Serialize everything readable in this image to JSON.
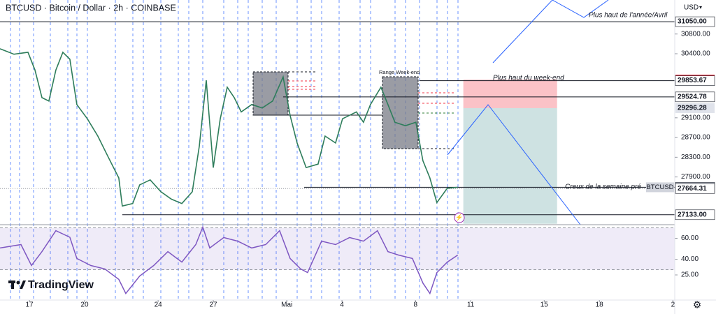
{
  "chart_data": {
    "type": "line",
    "title": "BTCUSD · Bitcoin / Dollar · 2h · COINBASE",
    "currency": "USD",
    "xlim": [
      15.4,
      52.1
    ],
    "xticks": [
      17,
      20,
      24,
      27,
      {
        "value": 31,
        "label": "Mai"
      },
      {
        "value": 34,
        "label": "4"
      },
      {
        "value": 38,
        "label": "8"
      },
      {
        "value": 41,
        "label": "11"
      },
      {
        "value": 45,
        "label": "15"
      },
      {
        "value": 48,
        "label": "18"
      },
      {
        "value": 52,
        "label": "2"
      }
    ],
    "ylim": [
      26960,
      31490
    ],
    "yticks": [
      {
        "value": 30800,
        "label": "30800.00"
      },
      {
        "value": 30400,
        "label": "30400.00"
      },
      {
        "value": 29100,
        "label": "29100.00"
      },
      {
        "value": 28700,
        "label": "28700.00"
      },
      {
        "value": 28300,
        "label": "28300.00"
      },
      {
        "value": 27900,
        "label": "27900.00"
      }
    ],
    "series": [
      {
        "name": "BTCUSD",
        "color": "#2e7d5b",
        "x": [
          15.4,
          16.16,
          16.92,
          17.3,
          17.68,
          18.06,
          18.44,
          18.82,
          19.2,
          19.58,
          20.15,
          20.72,
          21.29,
          21.86,
          22.05,
          22.62,
          23.0,
          23.57,
          24.15,
          24.72,
          25.29,
          25.86,
          26.24,
          26.62,
          27.0,
          27.38,
          27.76,
          28.14,
          28.52,
          29.09,
          29.66,
          30.23,
          30.8,
          31.18,
          31.56,
          32.05,
          32.7,
          33.08,
          33.65,
          34.03,
          34.79,
          35.17,
          35.55,
          36.12,
          36.5,
          36.88,
          37.45,
          38.02,
          38.4,
          38.78,
          39.16,
          39.73,
          40.3
        ],
        "values": [
          30500,
          30390,
          30430,
          30070,
          29510,
          29440,
          30070,
          30430,
          30290,
          29370,
          29080,
          28730,
          28300,
          27880,
          27310,
          27360,
          27740,
          27840,
          27600,
          27450,
          27360,
          27600,
          28520,
          29860,
          28090,
          29080,
          29720,
          29510,
          29220,
          29370,
          29300,
          29440,
          29930,
          29150,
          28590,
          28090,
          28160,
          28730,
          28590,
          29080,
          29220,
          29010,
          29370,
          29720,
          29370,
          29010,
          28940,
          29010,
          28230,
          27880,
          27380,
          27670,
          27690
        ]
      }
    ],
    "rsi": {
      "color": "#7e57c2",
      "ylim": [
        1,
        73
      ],
      "band": [
        30,
        70
      ],
      "yticks": [
        {
          "value": 60,
          "label": "60.00"
        },
        {
          "value": 40,
          "label": "40.00"
        },
        {
          "value": 25,
          "label": "25.00"
        }
      ],
      "x": [
        15.4,
        16.54,
        17.11,
        17.68,
        18.44,
        19.2,
        19.58,
        20.34,
        21.1,
        21.86,
        22.24,
        23.0,
        23.76,
        24.53,
        25.29,
        26.05,
        26.43,
        26.81,
        27.57,
        28.33,
        29.09,
        29.85,
        30.61,
        31.18,
        31.75,
        32.13,
        32.89,
        33.65,
        34.41,
        35.17,
        35.93,
        36.5,
        37.07,
        37.83,
        38.4,
        38.78,
        39.16,
        39.73,
        40.3
      ],
      "values": [
        50.7,
        54,
        34,
        47.3,
        67.3,
        61,
        40.7,
        34,
        30.7,
        20.7,
        7.3,
        24,
        34,
        47.3,
        37.3,
        54,
        70.7,
        50.7,
        60.7,
        57.3,
        50.7,
        54,
        67.3,
        40.7,
        30.7,
        27.3,
        57.3,
        54,
        60.7,
        57.3,
        67.3,
        47.3,
        44,
        40.7,
        17.3,
        7.3,
        27.3,
        37.3,
        44
      ]
    },
    "price_levels": [
      {
        "value": 31050,
        "label": "31050.00",
        "from": 15.4,
        "color": "#131722",
        "style": "solid",
        "label_bg": "#ffffff",
        "label_color": "#131722"
      },
      {
        "value": 29853.67,
        "from": 38.21,
        "color": "#131722",
        "style": "solid",
        "label_bg": "#ffffff",
        "label_color": "#131722"
      },
      {
        "value": 29524.78,
        "from": 30.8,
        "color": "#131722",
        "style": "solid",
        "label_bg": "#ffffff",
        "label_color": "#131722"
      },
      {
        "value": 27690.24,
        "from": 31.94,
        "color": "#131722",
        "style": "solid",
        "label_bg": "#d1d4dc",
        "label_color": "#131722",
        "tag": "BTCUSD"
      },
      {
        "value": 27664.31,
        "from": 15.4,
        "color": "#9598a1",
        "style": "dotted",
        "label_bg": "#ffffff",
        "label_color": "#131722"
      },
      {
        "value": 27133,
        "label": "27133.00",
        "from": 22.05,
        "color": "#131722",
        "style": "solid",
        "label_bg": "#ffffff",
        "label_color": "#131722"
      }
    ],
    "position": {
      "stop": 29875.74,
      "entry": 29296.28,
      "target": 26950,
      "x": [
        40.6,
        45.7
      ],
      "stop_color": "#f23645",
      "entry_color": "#e0e3eb"
    },
    "annotations": [
      "Plus haut de l'année/Avril",
      "Plus haut du week-end",
      "Creux de la semaine pré",
      "Range Week-end"
    ],
    "watermark": "TradingView"
  }
}
